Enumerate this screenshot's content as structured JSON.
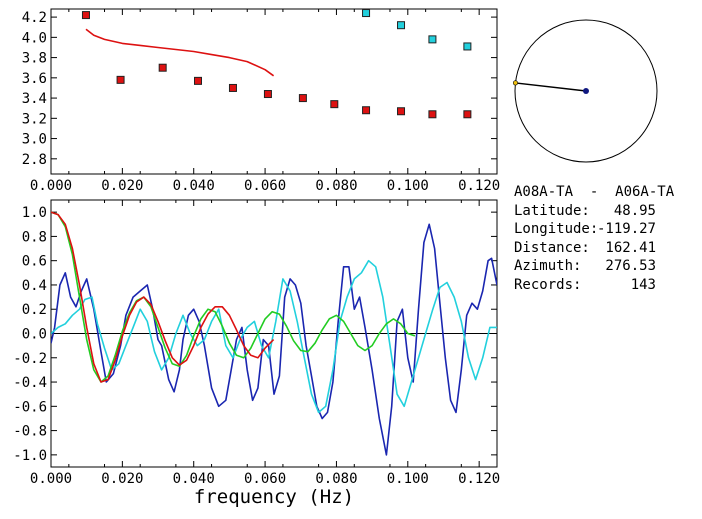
{
  "info": {
    "station_pair": "A08A-TA  -  A06A-TA",
    "rows": [
      {
        "label": "Latitude:",
        "value": "48.95"
      },
      {
        "label": "Longitude:",
        "value": "-119.27"
      },
      {
        "label": "Distance:",
        "value": "162.41"
      },
      {
        "label": "Azimuth:",
        "value": "276.53"
      },
      {
        "label": "Records:",
        "value": "143"
      }
    ]
  },
  "colors": {
    "red": "#dd1111",
    "cyan": "#22d0dd",
    "green": "#22cc22",
    "blue": "#1a26b0",
    "black": "#000000"
  },
  "chart_data": [
    {
      "type": "scatter",
      "xlabel": "",
      "ylabel": "",
      "xlim": [
        0.0,
        0.125
      ],
      "ylim": [
        2.65,
        4.28
      ],
      "xticks": [
        "0.000",
        "0.020",
        "0.040",
        "0.060",
        "0.080",
        "0.100",
        "0.120"
      ],
      "yticks": [
        "2.8",
        "3.0",
        "3.2",
        "3.4",
        "3.6",
        "3.8",
        "4.0",
        "4.2"
      ],
      "series": [
        {
          "kind": "markers",
          "color": "red",
          "x": [
            0.0098,
            0.0195,
            0.0313,
            0.0412,
            0.051,
            0.0608,
            0.0706,
            0.0794,
            0.0883,
            0.0981,
            0.1069,
            0.1167
          ],
          "y": [
            4.22,
            3.58,
            3.7,
            3.57,
            3.5,
            3.44,
            3.4,
            3.34,
            3.28,
            3.27,
            3.24,
            3.24
          ]
        },
        {
          "kind": "markers",
          "color": "cyan",
          "x": [
            0.0883,
            0.0981,
            0.1069,
            0.1167
          ],
          "y": [
            4.24,
            4.12,
            3.98,
            3.91
          ]
        },
        {
          "kind": "line",
          "color": "red",
          "x": [
            0.0098,
            0.012,
            0.015,
            0.02,
            0.025,
            0.03,
            0.035,
            0.04,
            0.045,
            0.05,
            0.055,
            0.06,
            0.0624
          ],
          "y": [
            4.08,
            4.02,
            3.98,
            3.94,
            3.92,
            3.9,
            3.88,
            3.86,
            3.83,
            3.8,
            3.76,
            3.68,
            3.62
          ]
        }
      ]
    },
    {
      "type": "line",
      "xlabel": "frequency (Hz)",
      "ylabel": "",
      "xlim": [
        0.0,
        0.125
      ],
      "ylim": [
        -1.1,
        1.1
      ],
      "xticks": [
        "0.000",
        "0.020",
        "0.040",
        "0.060",
        "0.080",
        "0.100",
        "0.120"
      ],
      "yticks": [
        "1.0",
        "0.8",
        "0.6",
        "0.4",
        "0.2",
        "0.0",
        "-0.2",
        "-0.4",
        "-0.6",
        "-0.8",
        "-1.0"
      ],
      "series": [
        {
          "color": "blue",
          "x": [
            0.0,
            0.001,
            0.0025,
            0.004,
            0.0055,
            0.007,
            0.0085,
            0.01,
            0.012,
            0.014,
            0.0155,
            0.0175,
            0.0195,
            0.021,
            0.023,
            0.025,
            0.027,
            0.0285,
            0.03,
            0.031,
            0.033,
            0.0345,
            0.036,
            0.037,
            0.0385,
            0.04,
            0.0415,
            0.043,
            0.045,
            0.047,
            0.049,
            0.0505,
            0.052,
            0.0535,
            0.055,
            0.0565,
            0.058,
            0.0595,
            0.061,
            0.0625,
            0.064,
            0.0655,
            0.067,
            0.0685,
            0.07,
            0.0715,
            0.073,
            0.0745,
            0.076,
            0.0775,
            0.079,
            0.0805,
            0.082,
            0.0835,
            0.085,
            0.0865,
            0.088,
            0.09,
            0.092,
            0.094,
            0.0955,
            0.097,
            0.0985,
            0.1,
            0.1015,
            0.103,
            0.1045,
            0.106,
            0.1075,
            0.109,
            0.1105,
            0.112,
            0.1135,
            0.115,
            0.1165,
            0.118,
            0.1195,
            0.121,
            0.1225,
            0.1235,
            0.125
          ],
          "y": [
            -0.08,
            0.05,
            0.4,
            0.5,
            0.3,
            0.22,
            0.35,
            0.45,
            0.2,
            -0.15,
            -0.4,
            -0.33,
            -0.1,
            0.15,
            0.3,
            0.35,
            0.4,
            0.2,
            -0.05,
            -0.1,
            -0.38,
            -0.48,
            -0.3,
            -0.05,
            0.15,
            0.2,
            0.1,
            -0.1,
            -0.45,
            -0.6,
            -0.55,
            -0.3,
            -0.05,
            0.05,
            -0.3,
            -0.55,
            -0.45,
            -0.05,
            -0.1,
            -0.5,
            -0.35,
            0.3,
            0.45,
            0.4,
            0.25,
            -0.1,
            -0.35,
            -0.6,
            -0.7,
            -0.65,
            -0.4,
            0.1,
            0.55,
            0.55,
            0.2,
            0.3,
            0.05,
            -0.3,
            -0.7,
            -1.0,
            -0.6,
            0.1,
            0.2,
            -0.2,
            -0.4,
            0.2,
            0.75,
            0.9,
            0.7,
            0.25,
            -0.2,
            -0.55,
            -0.65,
            -0.3,
            0.15,
            0.25,
            0.2,
            0.35,
            0.6,
            0.62,
            0.4
          ]
        },
        {
          "color": "cyan",
          "x": [
            0.0,
            0.002,
            0.004,
            0.006,
            0.008,
            0.0095,
            0.0115,
            0.013,
            0.015,
            0.017,
            0.019,
            0.021,
            0.023,
            0.025,
            0.027,
            0.029,
            0.031,
            0.033,
            0.035,
            0.037,
            0.039,
            0.041,
            0.043,
            0.045,
            0.047,
            0.049,
            0.051,
            0.053,
            0.055,
            0.057,
            0.059,
            0.061,
            0.063,
            0.065,
            0.067,
            0.069,
            0.071,
            0.073,
            0.075,
            0.077,
            0.079,
            0.081,
            0.083,
            0.085,
            0.087,
            0.089,
            0.091,
            0.093,
            0.095,
            0.097,
            0.099,
            0.101,
            0.103,
            0.105,
            0.107,
            0.109,
            0.111,
            0.113,
            0.115,
            0.117,
            0.119,
            0.121,
            0.123,
            0.125
          ],
          "y": [
            0.0,
            0.05,
            0.08,
            0.15,
            0.2,
            0.28,
            0.3,
            0.08,
            -0.12,
            -0.3,
            -0.25,
            -0.1,
            0.05,
            0.2,
            0.1,
            -0.15,
            -0.3,
            -0.2,
            0.0,
            0.15,
            0.0,
            -0.1,
            -0.05,
            0.1,
            0.2,
            -0.1,
            -0.2,
            -0.05,
            0.05,
            0.1,
            -0.1,
            -0.2,
            0.1,
            0.45,
            0.35,
            0.1,
            -0.2,
            -0.5,
            -0.65,
            -0.6,
            -0.3,
            0.1,
            0.3,
            0.45,
            0.5,
            0.6,
            0.55,
            0.3,
            -0.1,
            -0.5,
            -0.6,
            -0.4,
            -0.2,
            0.0,
            0.2,
            0.38,
            0.42,
            0.3,
            0.1,
            -0.2,
            -0.38,
            -0.2,
            0.05,
            0.05
          ]
        },
        {
          "color": "green",
          "x": [
            0.0,
            0.002,
            0.004,
            0.006,
            0.008,
            0.01,
            0.012,
            0.014,
            0.016,
            0.018,
            0.02,
            0.022,
            0.024,
            0.026,
            0.028,
            0.03,
            0.032,
            0.034,
            0.036,
            0.038,
            0.04,
            0.042,
            0.044,
            0.046,
            0.048,
            0.05,
            0.052,
            0.054,
            0.056,
            0.058,
            0.06,
            0.062,
            0.064,
            0.066,
            0.068,
            0.07,
            0.072,
            0.074,
            0.076,
            0.078,
            0.08,
            0.082,
            0.084,
            0.086,
            0.088,
            0.09,
            0.092,
            0.094,
            0.096,
            0.098,
            0.1,
            0.102
          ],
          "y": [
            1.0,
            0.98,
            0.88,
            0.65,
            0.3,
            -0.05,
            -0.3,
            -0.4,
            -0.35,
            -0.18,
            0.02,
            0.17,
            0.27,
            0.3,
            0.22,
            0.05,
            -0.12,
            -0.25,
            -0.27,
            -0.18,
            -0.02,
            0.12,
            0.2,
            0.18,
            0.06,
            -0.08,
            -0.18,
            -0.2,
            -0.12,
            0.0,
            0.12,
            0.18,
            0.16,
            0.06,
            -0.06,
            -0.14,
            -0.15,
            -0.08,
            0.03,
            0.12,
            0.15,
            0.1,
            0.0,
            -0.1,
            -0.14,
            -0.1,
            0.0,
            0.08,
            0.12,
            0.08,
            0.0,
            -0.02
          ]
        },
        {
          "color": "red",
          "x": [
            0.0,
            0.002,
            0.004,
            0.006,
            0.008,
            0.01,
            0.012,
            0.014,
            0.016,
            0.018,
            0.02,
            0.022,
            0.024,
            0.026,
            0.028,
            0.03,
            0.032,
            0.034,
            0.036,
            0.038,
            0.04,
            0.042,
            0.044,
            0.046,
            0.048,
            0.05,
            0.052,
            0.054,
            0.056,
            0.058,
            0.06,
            0.0624
          ],
          "y": [
            1.0,
            0.98,
            0.9,
            0.7,
            0.4,
            0.05,
            -0.25,
            -0.4,
            -0.38,
            -0.22,
            -0.02,
            0.15,
            0.26,
            0.3,
            0.24,
            0.1,
            -0.06,
            -0.2,
            -0.26,
            -0.22,
            -0.1,
            0.05,
            0.16,
            0.22,
            0.22,
            0.15,
            0.03,
            -0.1,
            -0.18,
            -0.2,
            -0.12,
            -0.05
          ]
        }
      ]
    }
  ],
  "map_inset": {
    "station_color": "#101880",
    "arrow_color": "#f0c010",
    "azimuth_deg": 276.53
  }
}
